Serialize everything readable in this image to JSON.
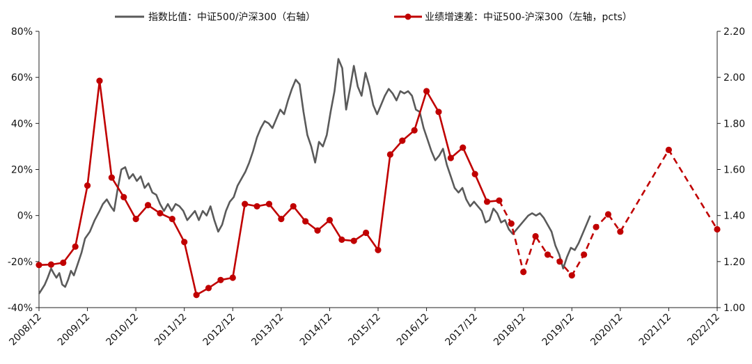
{
  "chart_data": {
    "type": "line",
    "title": "",
    "legend": {
      "placement": "top-center",
      "items": [
        "指数比值：中证500/沪深300（右轴）",
        "业绩增速差：中证500-沪深300（左轴，pcts）"
      ]
    },
    "x_categories": [
      "2008/12",
      "2009/12",
      "2010/12",
      "2011/12",
      "2012/12",
      "2013/12",
      "2014/12",
      "2015/12",
      "2016/12",
      "2017/12",
      "2018/12",
      "2019/12",
      "2020/12",
      "2021/12",
      "2022/12"
    ],
    "left_axis": {
      "ylim": [
        -0.4,
        0.8
      ],
      "ticks": [
        -0.4,
        -0.2,
        0,
        0.2,
        0.4,
        0.6,
        0.8
      ],
      "tick_labels": [
        "-40%",
        "-20%",
        "0%",
        "20%",
        "40%",
        "60%",
        "80%"
      ]
    },
    "right_axis": {
      "ylim": [
        1.0,
        2.2
      ],
      "ticks": [
        1.0,
        1.2,
        1.4,
        1.6,
        1.8,
        2.0,
        2.2
      ],
      "tick_labels": [
        "1.00",
        "1.20",
        "1.40",
        "1.60",
        "1.80",
        "2.00",
        "2.20"
      ]
    },
    "grid": false,
    "colors": {
      "ratio_line": "#5a5a5a",
      "growth_line": "#c00000"
    },
    "series": [
      {
        "name": "指数比值：中证500/沪深300（右轴）",
        "axis": "right",
        "style": "solid",
        "points": [
          [
            0.0,
            1.06
          ],
          [
            0.06,
            1.08
          ],
          [
            0.12,
            1.1
          ],
          [
            0.18,
            1.13
          ],
          [
            0.25,
            1.17
          ],
          [
            0.3,
            1.15
          ],
          [
            0.36,
            1.13
          ],
          [
            0.42,
            1.15
          ],
          [
            0.48,
            1.1
          ],
          [
            0.54,
            1.09
          ],
          [
            0.6,
            1.12
          ],
          [
            0.66,
            1.16
          ],
          [
            0.72,
            1.14
          ],
          [
            0.8,
            1.19
          ],
          [
            0.88,
            1.24
          ],
          [
            0.95,
            1.3
          ],
          [
            1.05,
            1.33
          ],
          [
            1.15,
            1.38
          ],
          [
            1.25,
            1.42
          ],
          [
            1.32,
            1.45
          ],
          [
            1.4,
            1.47
          ],
          [
            1.48,
            1.44
          ],
          [
            1.55,
            1.42
          ],
          [
            1.62,
            1.51
          ],
          [
            1.7,
            1.6
          ],
          [
            1.78,
            1.61
          ],
          [
            1.86,
            1.56
          ],
          [
            1.94,
            1.58
          ],
          [
            2.02,
            1.55
          ],
          [
            2.1,
            1.57
          ],
          [
            2.18,
            1.52
          ],
          [
            2.26,
            1.54
          ],
          [
            2.34,
            1.5
          ],
          [
            2.42,
            1.49
          ],
          [
            2.5,
            1.45
          ],
          [
            2.58,
            1.42
          ],
          [
            2.66,
            1.45
          ],
          [
            2.74,
            1.42
          ],
          [
            2.82,
            1.45
          ],
          [
            2.9,
            1.44
          ],
          [
            2.98,
            1.42
          ],
          [
            3.06,
            1.38
          ],
          [
            3.14,
            1.4
          ],
          [
            3.22,
            1.42
          ],
          [
            3.3,
            1.38
          ],
          [
            3.38,
            1.42
          ],
          [
            3.46,
            1.4
          ],
          [
            3.54,
            1.44
          ],
          [
            3.62,
            1.38
          ],
          [
            3.7,
            1.33
          ],
          [
            3.78,
            1.36
          ],
          [
            3.86,
            1.42
          ],
          [
            3.94,
            1.46
          ],
          [
            4.02,
            1.48
          ],
          [
            4.1,
            1.53
          ],
          [
            4.18,
            1.56
          ],
          [
            4.26,
            1.59
          ],
          [
            4.34,
            1.63
          ],
          [
            4.42,
            1.68
          ],
          [
            4.5,
            1.74
          ],
          [
            4.58,
            1.78
          ],
          [
            4.66,
            1.81
          ],
          [
            4.74,
            1.8
          ],
          [
            4.82,
            1.78
          ],
          [
            4.9,
            1.82
          ],
          [
            4.98,
            1.86
          ],
          [
            5.06,
            1.84
          ],
          [
            5.14,
            1.9
          ],
          [
            5.22,
            1.95
          ],
          [
            5.3,
            1.99
          ],
          [
            5.38,
            1.97
          ],
          [
            5.46,
            1.85
          ],
          [
            5.54,
            1.75
          ],
          [
            5.62,
            1.7
          ],
          [
            5.7,
            1.63
          ],
          [
            5.78,
            1.72
          ],
          [
            5.86,
            1.7
          ],
          [
            5.94,
            1.75
          ],
          [
            6.02,
            1.85
          ],
          [
            6.1,
            1.94
          ],
          [
            6.18,
            2.08
          ],
          [
            6.26,
            2.04
          ],
          [
            6.34,
            1.86
          ],
          [
            6.42,
            1.95
          ],
          [
            6.5,
            2.05
          ],
          [
            6.58,
            1.96
          ],
          [
            6.66,
            1.92
          ],
          [
            6.74,
            2.02
          ],
          [
            6.82,
            1.96
          ],
          [
            6.9,
            1.88
          ],
          [
            6.98,
            1.84
          ],
          [
            7.06,
            1.88
          ],
          [
            7.14,
            1.92
          ],
          [
            7.22,
            1.95
          ],
          [
            7.3,
            1.93
          ],
          [
            7.38,
            1.9
          ],
          [
            7.46,
            1.94
          ],
          [
            7.54,
            1.93
          ],
          [
            7.62,
            1.94
          ],
          [
            7.7,
            1.92
          ],
          [
            7.78,
            1.86
          ],
          [
            7.86,
            1.85
          ],
          [
            7.94,
            1.78
          ],
          [
            8.02,
            1.73
          ],
          [
            8.1,
            1.68
          ],
          [
            8.18,
            1.64
          ],
          [
            8.26,
            1.66
          ],
          [
            8.34,
            1.69
          ],
          [
            8.42,
            1.62
          ],
          [
            8.5,
            1.57
          ],
          [
            8.58,
            1.52
          ],
          [
            8.66,
            1.5
          ],
          [
            8.74,
            1.52
          ],
          [
            8.82,
            1.47
          ],
          [
            8.9,
            1.44
          ],
          [
            8.98,
            1.46
          ],
          [
            9.06,
            1.44
          ],
          [
            9.14,
            1.42
          ],
          [
            9.22,
            1.37
          ],
          [
            9.3,
            1.38
          ],
          [
            9.38,
            1.43
          ],
          [
            9.46,
            1.41
          ],
          [
            9.54,
            1.37
          ],
          [
            9.62,
            1.38
          ],
          [
            9.7,
            1.34
          ],
          [
            9.78,
            1.32
          ],
          [
            9.86,
            1.34
          ],
          [
            9.94,
            1.36
          ],
          [
            10.02,
            1.38
          ],
          [
            10.1,
            1.4
          ],
          [
            10.18,
            1.41
          ],
          [
            10.26,
            1.4
          ],
          [
            10.34,
            1.41
          ],
          [
            10.42,
            1.39
          ],
          [
            10.5,
            1.36
          ],
          [
            10.58,
            1.33
          ],
          [
            10.66,
            1.27
          ],
          [
            10.74,
            1.23
          ],
          [
            10.82,
            1.17
          ],
          [
            10.9,
            1.22
          ],
          [
            10.98,
            1.26
          ],
          [
            11.06,
            1.25
          ],
          [
            11.14,
            1.28
          ],
          [
            11.22,
            1.32
          ],
          [
            11.3,
            1.36
          ],
          [
            11.38,
            1.4
          ]
        ]
      },
      {
        "name": "业绩增速差：中证500-沪深300（左轴，pcts）",
        "axis": "left",
        "style": "solid-then-dashed",
        "dashed_from_index": 38,
        "points": [
          [
            0.0,
            -0.215
          ],
          [
            0.25,
            -0.213
          ],
          [
            0.5,
            -0.205
          ],
          [
            0.75,
            -0.135
          ],
          [
            1.0,
            0.13
          ],
          [
            1.25,
            0.585
          ],
          [
            1.5,
            0.165
          ],
          [
            1.75,
            0.08
          ],
          [
            2.0,
            -0.015
          ],
          [
            2.25,
            0.045
          ],
          [
            2.5,
            0.01
          ],
          [
            2.75,
            -0.015
          ],
          [
            3.0,
            -0.115
          ],
          [
            3.25,
            -0.345
          ],
          [
            3.5,
            -0.315
          ],
          [
            3.75,
            -0.28
          ],
          [
            4.0,
            -0.27
          ],
          [
            4.25,
            0.05
          ],
          [
            4.5,
            0.04
          ],
          [
            4.75,
            0.05
          ],
          [
            5.0,
            -0.015
          ],
          [
            5.25,
            0.04
          ],
          [
            5.5,
            -0.025
          ],
          [
            5.75,
            -0.065
          ],
          [
            6.0,
            -0.02
          ],
          [
            6.25,
            -0.105
          ],
          [
            6.5,
            -0.11
          ],
          [
            6.75,
            -0.075
          ],
          [
            7.0,
            -0.15
          ],
          [
            7.25,
            0.265
          ],
          [
            7.5,
            0.325
          ],
          [
            7.75,
            0.37
          ],
          [
            8.0,
            0.54
          ],
          [
            8.25,
            0.45
          ],
          [
            8.5,
            0.25
          ],
          [
            8.75,
            0.295
          ],
          [
            9.0,
            0.18
          ],
          [
            9.25,
            0.06
          ],
          [
            9.5,
            0.065
          ],
          [
            9.75,
            -0.035
          ],
          [
            10.0,
            -0.245
          ],
          [
            10.25,
            -0.09
          ],
          [
            10.5,
            -0.17
          ],
          [
            10.75,
            -0.2
          ],
          [
            11.0,
            -0.26
          ],
          [
            11.25,
            -0.17
          ],
          [
            11.5,
            -0.05
          ],
          [
            11.75,
            0.005
          ],
          [
            12.0,
            -0.07
          ],
          [
            13.0,
            0.285
          ],
          [
            14.0,
            -0.06
          ]
        ]
      }
    ]
  }
}
